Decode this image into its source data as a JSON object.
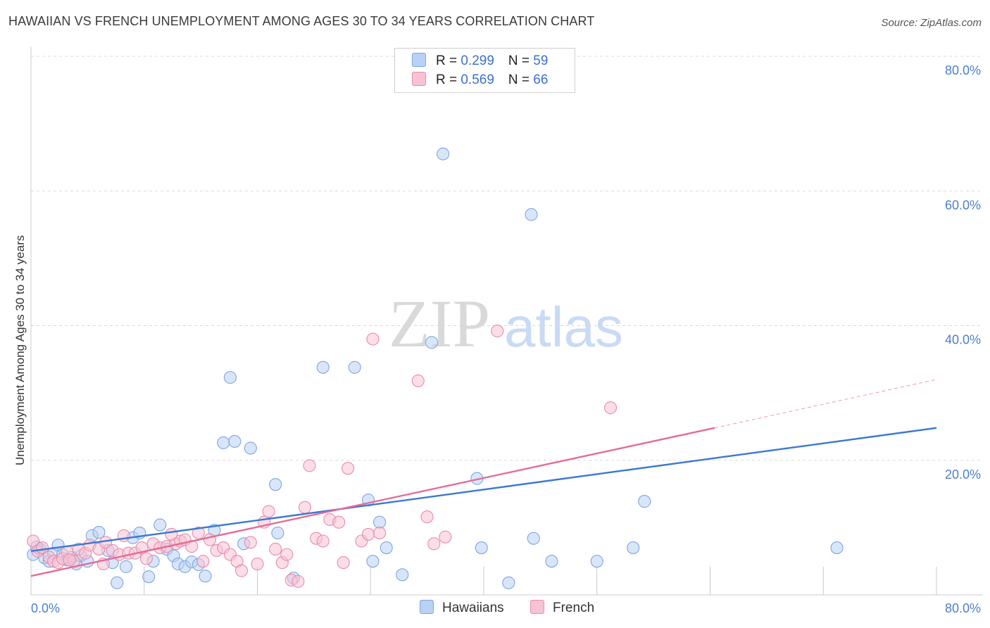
{
  "title": "HAWAIIAN VS FRENCH UNEMPLOYMENT AMONG AGES 30 TO 34 YEARS CORRELATION CHART",
  "source": "Source: ZipAtlas.com",
  "watermark": {
    "zip": "ZIP",
    "atlas": "atlas"
  },
  "legend": {
    "r_label": "R = ",
    "n_label": "N = ",
    "items": [
      {
        "name": "Hawaiians",
        "r": "0.299",
        "n": "59",
        "fill": "#b9d1f5",
        "stroke": "#7da6e0"
      },
      {
        "name": "French",
        "r": "0.569",
        "n": "66",
        "fill": "#f7c3d4",
        "stroke": "#e98aab"
      }
    ]
  },
  "chart_data": {
    "type": "scatter",
    "title": "HAWAIIAN VS FRENCH UNEMPLOYMENT AMONG AGES 30 TO 34 YEARS CORRELATION CHART",
    "xlabel": "",
    "ylabel": "Unemployment Among Ages 30 to 34 years",
    "xlim": [
      0,
      80
    ],
    "ylim": [
      0,
      80
    ],
    "x_tick_labels": [
      "0.0%",
      "80.0%"
    ],
    "y_ticks": [
      20,
      40,
      60,
      80
    ],
    "y_tick_labels": [
      "20.0%",
      "40.0%",
      "60.0%",
      "80.0%"
    ],
    "grid": true,
    "series": [
      {
        "name": "Hawaiians",
        "color": "#3a78d4",
        "point_fill": "#b9d1f5",
        "point_stroke": "#7da6e0",
        "trend": {
          "x": [
            0,
            80
          ],
          "y": [
            6.5,
            24.8
          ]
        },
        "points": [
          [
            0.2,
            6.0
          ],
          [
            0.8,
            6.8
          ],
          [
            1.2,
            5.5
          ],
          [
            1.6,
            5.0
          ],
          [
            2.0,
            6.2
          ],
          [
            2.4,
            7.4
          ],
          [
            2.8,
            6.0
          ],
          [
            3.2,
            5.2
          ],
          [
            3.6,
            5.6
          ],
          [
            4.0,
            4.6
          ],
          [
            4.4,
            5.8
          ],
          [
            5.0,
            5.0
          ],
          [
            5.4,
            8.8
          ],
          [
            6.0,
            9.3
          ],
          [
            6.8,
            6.6
          ],
          [
            7.2,
            4.8
          ],
          [
            7.6,
            1.8
          ],
          [
            8.4,
            4.2
          ],
          [
            9.0,
            8.5
          ],
          [
            9.6,
            9.2
          ],
          [
            10.4,
            2.7
          ],
          [
            10.8,
            5.0
          ],
          [
            11.4,
            10.4
          ],
          [
            12.0,
            6.8
          ],
          [
            12.6,
            5.8
          ],
          [
            13.0,
            4.6
          ],
          [
            13.6,
            4.2
          ],
          [
            14.2,
            4.9
          ],
          [
            15.4,
            2.8
          ],
          [
            16.2,
            9.6
          ],
          [
            17.0,
            22.6
          ],
          [
            17.6,
            32.3
          ],
          [
            18.0,
            22.8
          ],
          [
            18.8,
            7.6
          ],
          [
            19.4,
            21.8
          ],
          [
            21.6,
            16.4
          ],
          [
            21.8,
            9.2
          ],
          [
            23.2,
            2.5
          ],
          [
            25.8,
            33.8
          ],
          [
            28.6,
            33.8
          ],
          [
            29.8,
            14.1
          ],
          [
            30.8,
            10.8
          ],
          [
            30.2,
            5.0
          ],
          [
            31.4,
            7.0
          ],
          [
            32.8,
            3.0
          ],
          [
            35.4,
            37.5
          ],
          [
            36.4,
            65.5
          ],
          [
            39.4,
            17.3
          ],
          [
            39.8,
            7.0
          ],
          [
            42.2,
            1.8
          ],
          [
            44.2,
            56.5
          ],
          [
            44.4,
            8.4
          ],
          [
            46.0,
            5.0
          ],
          [
            50.0,
            5.0
          ],
          [
            53.2,
            7.0
          ],
          [
            54.2,
            13.9
          ],
          [
            71.2,
            7.0
          ],
          [
            0.5,
            7.1
          ],
          [
            14.8,
            4.5
          ]
        ]
      },
      {
        "name": "French",
        "color": "#e56b97",
        "point_fill": "#f7c3d4",
        "point_stroke": "#e98aab",
        "trend": {
          "x": [
            0,
            60.4
          ],
          "y": [
            2.8,
            24.8
          ]
        },
        "trend_dashed": {
          "x": [
            60.4,
            80
          ],
          "y": [
            24.8,
            32.0
          ]
        },
        "points": [
          [
            0.2,
            8.0
          ],
          [
            0.6,
            6.5
          ],
          [
            1.0,
            7.0
          ],
          [
            1.6,
            5.6
          ],
          [
            2.0,
            5.0
          ],
          [
            2.4,
            4.8
          ],
          [
            2.8,
            5.4
          ],
          [
            3.2,
            6.4
          ],
          [
            3.8,
            5.0
          ],
          [
            4.2,
            6.8
          ],
          [
            4.8,
            6.2
          ],
          [
            5.2,
            7.4
          ],
          [
            6.0,
            6.8
          ],
          [
            6.6,
            7.8
          ],
          [
            7.2,
            6.6
          ],
          [
            7.8,
            6.0
          ],
          [
            8.2,
            8.8
          ],
          [
            8.6,
            6.2
          ],
          [
            9.2,
            6.2
          ],
          [
            9.8,
            7.0
          ],
          [
            10.2,
            5.4
          ],
          [
            10.8,
            7.6
          ],
          [
            11.4,
            7.0
          ],
          [
            12.0,
            7.2
          ],
          [
            12.8,
            7.6
          ],
          [
            13.2,
            8.0
          ],
          [
            13.6,
            8.2
          ],
          [
            14.2,
            7.2
          ],
          [
            14.8,
            9.2
          ],
          [
            15.2,
            5.0
          ],
          [
            15.8,
            8.2
          ],
          [
            16.4,
            6.6
          ],
          [
            17.0,
            7.0
          ],
          [
            17.6,
            6.0
          ],
          [
            18.2,
            5.0
          ],
          [
            18.6,
            3.6
          ],
          [
            19.4,
            7.8
          ],
          [
            20.0,
            4.6
          ],
          [
            20.6,
            10.8
          ],
          [
            21.0,
            12.4
          ],
          [
            21.6,
            6.8
          ],
          [
            22.2,
            4.8
          ],
          [
            22.6,
            6.0
          ],
          [
            23.0,
            2.2
          ],
          [
            23.6,
            2.0
          ],
          [
            24.2,
            13.0
          ],
          [
            24.6,
            19.2
          ],
          [
            25.2,
            8.4
          ],
          [
            25.8,
            8.0
          ],
          [
            26.4,
            11.2
          ],
          [
            27.2,
            10.8
          ],
          [
            27.6,
            4.8
          ],
          [
            28.0,
            18.8
          ],
          [
            29.2,
            8.0
          ],
          [
            29.8,
            9.0
          ],
          [
            30.2,
            38.0
          ],
          [
            30.8,
            9.2
          ],
          [
            34.2,
            31.8
          ],
          [
            35.0,
            11.6
          ],
          [
            35.6,
            7.6
          ],
          [
            36.6,
            8.6
          ],
          [
            41.2,
            39.2
          ],
          [
            51.2,
            27.8
          ],
          [
            12.4,
            9.0
          ],
          [
            6.4,
            4.6
          ],
          [
            3.4,
            5.2
          ]
        ]
      }
    ]
  }
}
